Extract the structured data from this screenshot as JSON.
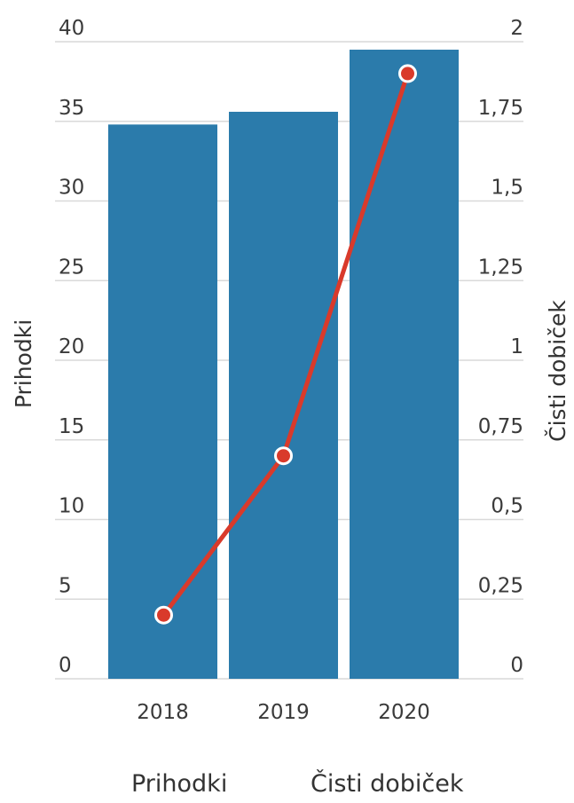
{
  "chart_data": {
    "type": "bar",
    "categories": [
      "2018",
      "2019",
      "2020"
    ],
    "series": [
      {
        "name": "Prihodki",
        "type": "bar",
        "axis": "left",
        "values": [
          34.8,
          35.6,
          39.5
        ]
      },
      {
        "name": "Čisti dobiček",
        "type": "line",
        "axis": "right",
        "values": [
          0.2,
          0.7,
          1.9
        ]
      }
    ],
    "y_left": {
      "label": "Prihodki",
      "ylim": [
        0,
        40
      ],
      "ticks": [
        {
          "v": 0,
          "t": "0"
        },
        {
          "v": 5,
          "t": "5"
        },
        {
          "v": 10,
          "t": "10"
        },
        {
          "v": 15,
          "t": "15"
        },
        {
          "v": 20,
          "t": "20"
        },
        {
          "v": 25,
          "t": "25"
        },
        {
          "v": 30,
          "t": "30"
        },
        {
          "v": 35,
          "t": "35"
        },
        {
          "v": 40,
          "t": "40"
        }
      ]
    },
    "y_right": {
      "label": "Čisti dobiček",
      "ylim": [
        0,
        2
      ],
      "ticks": [
        {
          "v": 0,
          "t": "0"
        },
        {
          "v": 0.25,
          "t": "0,25"
        },
        {
          "v": 0.5,
          "t": "0,5"
        },
        {
          "v": 0.75,
          "t": "0,75"
        },
        {
          "v": 1,
          "t": "1"
        },
        {
          "v": 1.25,
          "t": "1,25"
        },
        {
          "v": 1.5,
          "t": "1,5"
        },
        {
          "v": 1.75,
          "t": "1,75"
        },
        {
          "v": 2,
          "t": "2"
        }
      ]
    },
    "grid": true,
    "legend": {
      "position": "bottom",
      "items": [
        "Prihodki",
        "Čisti dobiček"
      ]
    }
  },
  "colors": {
    "bar": "#2b7bab",
    "line": "#d93a2b",
    "grid": "#d9d9d9"
  }
}
